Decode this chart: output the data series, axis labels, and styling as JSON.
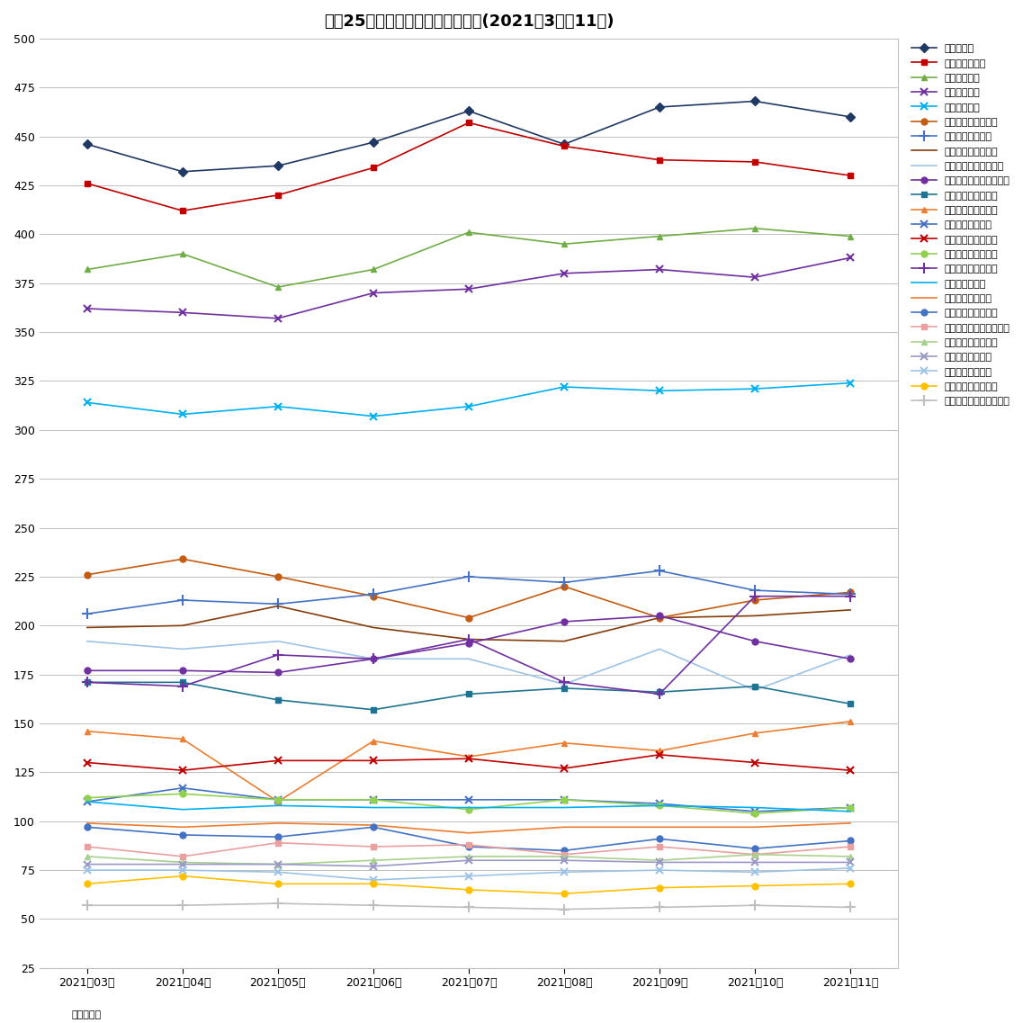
{
  "title": "主要25市区マンション坪単価推移(2021年3月～11月)",
  "xlabel_note": "単位：万円",
  "months": [
    "2021年03月",
    "2021年04月",
    "2021年05月",
    "2021年06月",
    "2021年07月",
    "2021年08月",
    "2021年09月",
    "2021年10月",
    "2021年11月"
  ],
  "ylim": [
    25,
    500
  ],
  "yticks": [
    25,
    50,
    75,
    100,
    125,
    150,
    175,
    200,
    225,
    250,
    275,
    300,
    325,
    350,
    375,
    400,
    425,
    450,
    475,
    500
  ],
  "series": [
    {
      "name": "東京都港区",
      "color": "#203864",
      "marker": "D",
      "values": [
        446,
        432,
        435,
        447,
        463,
        446,
        465,
        468,
        460
      ]
    },
    {
      "name": "東京都千代田区",
      "color": "#C00000",
      "marker": "s",
      "values": [
        426,
        412,
        420,
        434,
        457,
        445,
        438,
        437,
        430
      ]
    },
    {
      "name": "東京都渋谷区",
      "color": "#70AD47",
      "marker": "^",
      "values": [
        382,
        390,
        373,
        382,
        401,
        395,
        399,
        403,
        399
      ]
    },
    {
      "name": "東京都中央区",
      "color": "#7030A0",
      "marker": "x",
      "values": [
        362,
        360,
        357,
        370,
        372,
        380,
        382,
        378,
        388
      ]
    },
    {
      "name": "東京都新宿区",
      "color": "#00B0F0",
      "marker": "x",
      "values": [
        314,
        308,
        312,
        307,
        312,
        322,
        320,
        321,
        324
      ]
    },
    {
      "name": "京都府京都市中京区",
      "color": "#C55A11",
      "marker": "o",
      "values": [
        226,
        234,
        225,
        215,
        204,
        220,
        204,
        213,
        217
      ]
    },
    {
      "name": "大阪府大阪市北区",
      "color": "#4472C4",
      "marker": "+",
      "values": [
        206,
        213,
        211,
        216,
        225,
        222,
        228,
        218,
        216
      ]
    },
    {
      "name": "神奈川県横浜市中区",
      "color": "#843C0C",
      "marker": "None",
      "values": [
        199,
        200,
        210,
        199,
        193,
        192,
        204,
        205,
        208
      ]
    },
    {
      "name": "神奈川県川崎市川崎区",
      "color": "#9DC3E6",
      "marker": "None",
      "values": [
        192,
        188,
        192,
        183,
        183,
        170,
        188,
        167,
        185
      ]
    },
    {
      "name": "埼玉県さいたま市浦和区",
      "color": "#7030A0",
      "marker": "o",
      "values": [
        177,
        177,
        176,
        183,
        191,
        202,
        205,
        192,
        183
      ]
    },
    {
      "name": "兵庫県神戸市中央区",
      "color": "#1F7391",
      "marker": "s",
      "values": [
        171,
        171,
        162,
        157,
        165,
        168,
        166,
        169,
        160
      ]
    },
    {
      "name": "愛知県名古屋市中区",
      "color": "#ED7D31",
      "marker": "^",
      "values": [
        146,
        142,
        110,
        141,
        133,
        140,
        136,
        145,
        151
      ]
    },
    {
      "name": "広島県広島市中区",
      "color": "#4472C4",
      "marker": "x",
      "values": [
        110,
        117,
        111,
        111,
        111,
        111,
        109,
        105,
        107
      ]
    },
    {
      "name": "福岡県福岡市中央区",
      "color": "#C00000",
      "marker": "x",
      "values": [
        130,
        126,
        131,
        131,
        132,
        127,
        134,
        130,
        126
      ]
    },
    {
      "name": "千葉県千葉市中央区",
      "color": "#92D050",
      "marker": "o",
      "values": [
        112,
        114,
        111,
        111,
        106,
        111,
        108,
        104,
        107
      ]
    },
    {
      "name": "宮城県仙台市青葉区",
      "color": "#7030A0",
      "marker": "+",
      "values": [
        171,
        169,
        185,
        183,
        193,
        171,
        165,
        215,
        215
      ]
    },
    {
      "name": "大阪府堺市堺区",
      "color": "#00B0F0",
      "marker": "None",
      "values": [
        110,
        106,
        108,
        107,
        107,
        107,
        108,
        107,
        105
      ]
    },
    {
      "name": "岡山県岡山市北区",
      "color": "#ED7D31",
      "marker": "None",
      "values": [
        99,
        97,
        99,
        98,
        94,
        97,
        97,
        97,
        99
      ]
    },
    {
      "name": "北海道札幌市中央区",
      "color": "#4472C4",
      "marker": "o",
      "values": [
        97,
        93,
        92,
        97,
        87,
        85,
        91,
        86,
        90
      ]
    },
    {
      "name": "神奈川県相模原市中央区",
      "color": "#E8A0A0",
      "marker": "s",
      "values": [
        87,
        82,
        89,
        87,
        88,
        83,
        87,
        83,
        87
      ]
    },
    {
      "name": "新潟県新潟市中央区",
      "color": "#A9D18E",
      "marker": "^",
      "values": [
        82,
        79,
        78,
        80,
        82,
        82,
        80,
        83,
        82
      ]
    },
    {
      "name": "静岡県静岡市葵区",
      "color": "#9B99C7",
      "marker": "x",
      "values": [
        78,
        78,
        78,
        77,
        80,
        80,
        79,
        79,
        79
      ]
    },
    {
      "name": "静岡県浜松市中区",
      "color": "#9DC3E6",
      "marker": "x",
      "values": [
        75,
        75,
        74,
        70,
        72,
        74,
        75,
        74,
        76
      ]
    },
    {
      "name": "熊本県熊本市中央区",
      "color": "#FFC000",
      "marker": "o",
      "values": [
        68,
        72,
        68,
        68,
        65,
        63,
        66,
        67,
        68
      ]
    },
    {
      "name": "福岡県北九州市小倉北区",
      "color": "#BFBFBF",
      "marker": "+",
      "values": [
        57,
        57,
        58,
        57,
        56,
        55,
        56,
        57,
        56
      ]
    }
  ]
}
